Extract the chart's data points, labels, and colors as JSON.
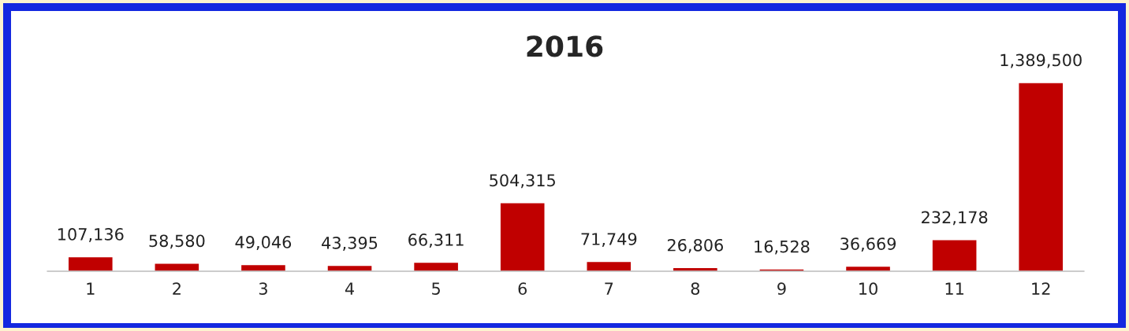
{
  "chart_data": {
    "type": "bar",
    "title": "2016",
    "categories": [
      "1",
      "2",
      "3",
      "4",
      "5",
      "6",
      "7",
      "8",
      "9",
      "10",
      "11",
      "12"
    ],
    "values": [
      107136,
      58580,
      49046,
      43395,
      66311,
      504315,
      71749,
      26806,
      16528,
      36669,
      232178,
      1389500
    ],
    "value_labels": [
      "107,136",
      "58,580",
      "49,046",
      "43,395",
      "66,311",
      "504,315",
      "71,749",
      "26,806",
      "16,528",
      "36,669",
      "232,178",
      "1,389,500"
    ],
    "color": "#c00000",
    "grid": false,
    "legend": false
  }
}
